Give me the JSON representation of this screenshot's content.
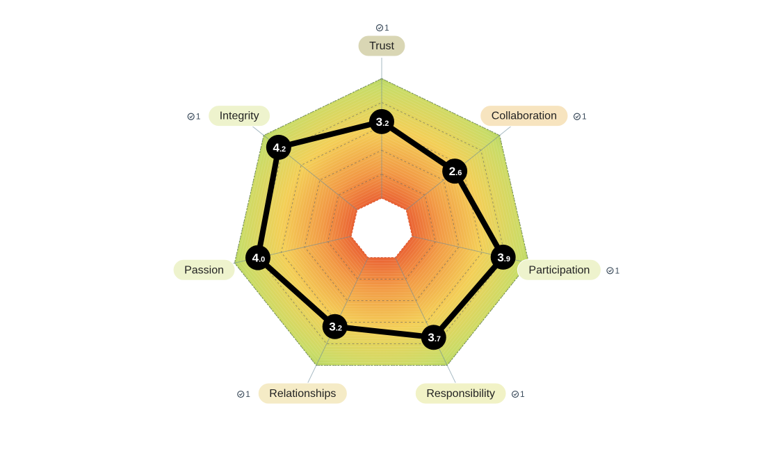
{
  "chart_data": {
    "type": "radar",
    "title": "",
    "scale": [
      0,
      5
    ],
    "axes": [
      {
        "label": "Trust",
        "value": 3.2,
        "badge": "1",
        "pill_color": "#d9d6b4"
      },
      {
        "label": "Collaboration",
        "value": 2.6,
        "badge": "1",
        "pill_color": "#f7e4bf"
      },
      {
        "label": "Participation",
        "value": 3.9,
        "badge": "1",
        "pill_color": "#eef3cd"
      },
      {
        "label": "Responsibility",
        "value": 3.7,
        "badge": "1",
        "pill_color": "#f1f2c6"
      },
      {
        "label": "Relationships",
        "value": 3.2,
        "badge": "1",
        "pill_color": "#f5ebc6"
      },
      {
        "label": "Passion",
        "value": 4.0,
        "badge": "",
        "pill_color": "#eef3cd"
      },
      {
        "label": "Integrity",
        "value": 4.2,
        "badge": "1",
        "pill_color": "#eef3cd"
      }
    ],
    "value_labels": [
      {
        "main": "3",
        "sub": ".2"
      },
      {
        "main": "2",
        "sub": ".6"
      },
      {
        "main": "3",
        "sub": ".9"
      },
      {
        "main": "3",
        "sub": ".7"
      },
      {
        "main": "3",
        "sub": ".2"
      },
      {
        "main": "4",
        "sub": ".0"
      },
      {
        "main": "4",
        "sub": ".2"
      }
    ],
    "colors": {
      "gradient_inner": "#ef6a3c",
      "gradient_mid": "#f4c24e",
      "gradient_outer": "#a7cf63",
      "series_line": "#000000",
      "axis_line": "#6a8a9a"
    }
  }
}
